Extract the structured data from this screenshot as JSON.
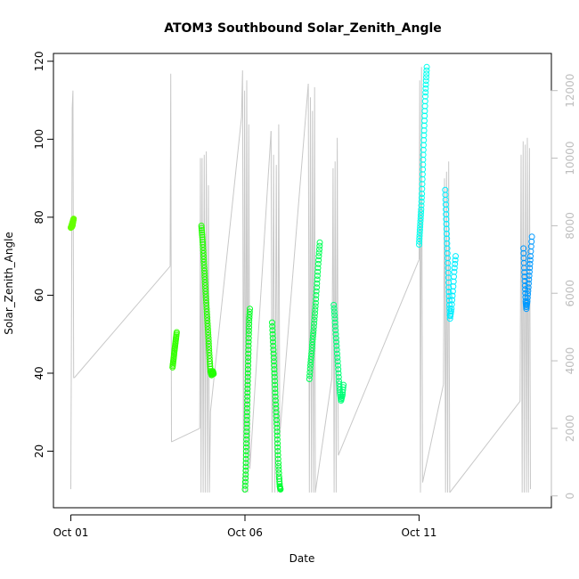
{
  "chart_data": {
    "type": "scatter",
    "title": "ATOM3 Southbound Solar_Zenith_Angle",
    "xlabel": "Date",
    "ylabel": "Solar_Zenith_Angle",
    "x_ticks": [
      {
        "label": "Oct 01",
        "day": 1.0
      },
      {
        "label": "Oct 06",
        "day": 6.0
      },
      {
        "label": "Oct 11",
        "day": 11.0
      }
    ],
    "xlim_days": [
      0.5,
      14.8
    ],
    "ylim": [
      5.5,
      122
    ],
    "y_ticks": [
      20,
      40,
      60,
      80,
      100,
      120
    ],
    "y2_ticks": [
      0,
      2000,
      4000,
      6000,
      8000,
      10000,
      12000
    ],
    "y2lim": [
      -350,
      13100
    ],
    "grid": false,
    "colors": {
      "altitude_line": "#c8c8c8",
      "right_axis": "#bdbdbd"
    },
    "series": [
      {
        "color": "#66ff00",
        "points": [
          [
            1.0,
            77.3
          ],
          [
            1.02,
            77.8
          ],
          [
            1.04,
            78.4
          ],
          [
            1.06,
            79.0
          ],
          [
            1.08,
            79.6
          ],
          [
            1.05,
            78.0
          ],
          [
            1.03,
            77.5
          ]
        ]
      },
      {
        "color": "#33ff00",
        "points": [
          [
            3.92,
            41.5
          ],
          [
            3.94,
            43.0
          ],
          [
            3.96,
            44.5
          ],
          [
            3.98,
            46.0
          ],
          [
            4.0,
            47.5
          ],
          [
            4.02,
            49.0
          ],
          [
            4.04,
            50.5
          ]
        ]
      },
      {
        "color": "#22ff00",
        "points": [
          [
            4.75,
            77.8
          ],
          [
            4.77,
            75.5
          ],
          [
            4.79,
            73.0
          ],
          [
            4.81,
            70.0
          ],
          [
            4.83,
            67.0
          ],
          [
            4.85,
            64.0
          ],
          [
            4.87,
            61.0
          ],
          [
            4.89,
            58.0
          ],
          [
            4.91,
            55.0
          ],
          [
            4.93,
            52.0
          ],
          [
            4.95,
            49.0
          ],
          [
            4.97,
            46.0
          ],
          [
            4.99,
            43.0
          ],
          [
            5.01,
            40.5
          ],
          [
            5.04,
            39.5
          ],
          [
            5.08,
            40.5
          ],
          [
            5.1,
            39.8
          ]
        ]
      },
      {
        "color": "#00ff22",
        "points": [
          [
            6.0,
            10.2
          ],
          [
            6.02,
            14.0
          ],
          [
            6.03,
            18.0
          ],
          [
            6.04,
            22.0
          ],
          [
            6.05,
            26.0
          ],
          [
            6.06,
            30.0
          ],
          [
            6.07,
            34.0
          ],
          [
            6.08,
            38.0
          ],
          [
            6.09,
            42.0
          ],
          [
            6.1,
            46.0
          ],
          [
            6.11,
            50.0
          ],
          [
            6.12,
            53.5
          ],
          [
            6.14,
            56.5
          ]
        ]
      },
      {
        "color": "#00ff33",
        "points": [
          [
            6.78,
            53.0
          ],
          [
            6.8,
            49.0
          ],
          [
            6.82,
            45.0
          ],
          [
            6.84,
            41.0
          ],
          [
            6.86,
            37.0
          ],
          [
            6.88,
            33.0
          ],
          [
            6.9,
            29.0
          ],
          [
            6.92,
            25.0
          ],
          [
            6.94,
            21.0
          ],
          [
            6.96,
            17.0
          ],
          [
            6.98,
            13.5
          ],
          [
            7.0,
            11.0
          ],
          [
            7.02,
            10.2
          ]
        ]
      },
      {
        "color": "#00ff55",
        "points": [
          [
            7.85,
            38.5
          ],
          [
            7.88,
            42.0
          ],
          [
            7.91,
            45.0
          ],
          [
            7.94,
            48.0
          ],
          [
            7.97,
            51.0
          ],
          [
            8.0,
            54.5
          ],
          [
            8.03,
            58.0
          ],
          [
            8.06,
            62.0
          ],
          [
            8.09,
            66.0
          ],
          [
            8.12,
            70.0
          ],
          [
            8.15,
            73.5
          ]
        ]
      },
      {
        "color": "#00ff77",
        "points": [
          [
            8.55,
            57.5
          ],
          [
            8.58,
            54.0
          ],
          [
            8.61,
            50.0
          ],
          [
            8.64,
            46.0
          ],
          [
            8.67,
            42.0
          ],
          [
            8.7,
            38.0
          ],
          [
            8.73,
            35.0
          ],
          [
            8.76,
            33.0
          ],
          [
            8.8,
            34.5
          ],
          [
            8.83,
            37.0
          ]
        ]
      },
      {
        "color": "#00ffee",
        "points": [
          [
            11.0,
            73.0
          ],
          [
            11.02,
            76.0
          ],
          [
            11.04,
            79.0
          ],
          [
            11.06,
            82.0
          ],
          [
            11.08,
            86.0
          ],
          [
            11.1,
            91.0
          ],
          [
            11.12,
            96.0
          ],
          [
            11.14,
            101.0
          ],
          [
            11.16,
            106.0
          ],
          [
            11.18,
            111.0
          ],
          [
            11.2,
            115.0
          ],
          [
            11.22,
            118.5
          ]
        ]
      },
      {
        "color": "#00eeff",
        "points": [
          [
            11.75,
            87.0
          ],
          [
            11.77,
            82.0
          ],
          [
            11.79,
            77.0
          ],
          [
            11.81,
            72.0
          ],
          [
            11.83,
            67.0
          ],
          [
            11.85,
            62.0
          ],
          [
            11.87,
            57.5
          ],
          [
            11.89,
            54.0
          ],
          [
            11.93,
            56.5
          ],
          [
            11.97,
            61.0
          ],
          [
            12.01,
            66.0
          ],
          [
            12.05,
            70.0
          ]
        ]
      },
      {
        "color": "#0099ff",
        "points": [
          [
            14.0,
            72.0
          ],
          [
            14.02,
            67.0
          ],
          [
            14.04,
            62.5
          ],
          [
            14.06,
            58.5
          ],
          [
            14.08,
            56.5
          ],
          [
            14.11,
            58.5
          ],
          [
            14.14,
            62.0
          ],
          [
            14.17,
            66.0
          ],
          [
            14.2,
            70.0
          ],
          [
            14.24,
            75.0
          ]
        ]
      }
    ],
    "altitude_segments": [
      [
        [
          1.0,
          200
        ],
        [
          1.02,
          5500
        ],
        [
          1.04,
          11500
        ],
        [
          1.06,
          12000
        ],
        [
          1.08,
          3500
        ],
        [
          1.1,
          3500
        ]
      ],
      [
        [
          1.1,
          3500
        ],
        [
          3.85,
          6800
        ]
      ],
      [
        [
          3.85,
          6800
        ],
        [
          3.87,
          12500
        ],
        [
          3.89,
          1600
        ]
      ],
      [
        [
          3.89,
          1600
        ],
        [
          4.7,
          2000
        ]
      ],
      [
        [
          4.7,
          2000
        ],
        [
          4.72,
          10000
        ],
        [
          4.74,
          100
        ],
        [
          4.77,
          10000
        ],
        [
          4.8,
          100
        ],
        [
          4.83,
          10100
        ],
        [
          4.86,
          100
        ],
        [
          4.89,
          10200
        ],
        [
          4.92,
          100
        ],
        [
          4.95,
          9200
        ],
        [
          4.98,
          100
        ],
        [
          5.01,
          2500
        ]
      ],
      [
        [
          5.01,
          2500
        ],
        [
          5.9,
          11200
        ]
      ],
      [
        [
          5.9,
          11200
        ],
        [
          5.93,
          12600
        ],
        [
          5.96,
          100
        ],
        [
          5.99,
          12000
        ],
        [
          6.02,
          100
        ],
        [
          6.05,
          12300
        ],
        [
          6.08,
          100
        ],
        [
          6.11,
          11000
        ],
        [
          6.14,
          800
        ]
      ],
      [
        [
          6.14,
          800
        ],
        [
          6.75,
          10800
        ]
      ],
      [
        [
          6.75,
          10800
        ],
        [
          6.78,
          100
        ],
        [
          6.82,
          10100
        ],
        [
          6.86,
          100
        ],
        [
          6.9,
          9800
        ],
        [
          6.94,
          100
        ],
        [
          6.97,
          11000
        ],
        [
          7.0,
          1800
        ]
      ],
      [
        [
          7.0,
          1800
        ],
        [
          7.82,
          12200
        ]
      ],
      [
        [
          7.82,
          12200
        ],
        [
          7.85,
          100
        ],
        [
          7.88,
          11800
        ],
        [
          7.91,
          100
        ],
        [
          7.94,
          11400
        ],
        [
          7.97,
          100
        ],
        [
          8.0,
          12100
        ],
        [
          8.02,
          100
        ]
      ],
      [
        [
          8.02,
          100
        ],
        [
          8.5,
          3500
        ]
      ],
      [
        [
          8.5,
          3500
        ],
        [
          8.53,
          9700
        ],
        [
          8.56,
          100
        ],
        [
          8.59,
          9900
        ],
        [
          8.62,
          100
        ],
        [
          8.65,
          10600
        ],
        [
          8.68,
          1200
        ]
      ],
      [
        [
          8.68,
          1200
        ],
        [
          11.0,
          7000
        ]
      ],
      [
        [
          11.0,
          7000
        ],
        [
          11.02,
          12300
        ],
        [
          11.04,
          100
        ],
        [
          11.07,
          12700
        ],
        [
          11.1,
          400
        ]
      ],
      [
        [
          11.1,
          400
        ],
        [
          11.7,
          3300
        ]
      ],
      [
        [
          11.7,
          3300
        ],
        [
          11.73,
          9400
        ],
        [
          11.76,
          100
        ],
        [
          11.79,
          9600
        ],
        [
          11.82,
          100
        ],
        [
          11.85,
          9900
        ],
        [
          11.88,
          100
        ]
      ],
      [
        [
          11.88,
          100
        ],
        [
          13.9,
          2800
        ]
      ],
      [
        [
          13.9,
          2800
        ],
        [
          13.93,
          10100
        ],
        [
          13.96,
          100
        ],
        [
          13.99,
          10500
        ],
        [
          14.02,
          100
        ],
        [
          14.05,
          10400
        ],
        [
          14.08,
          100
        ],
        [
          14.11,
          10600
        ],
        [
          14.14,
          100
        ],
        [
          14.17,
          10300
        ],
        [
          14.2,
          200
        ]
      ]
    ]
  }
}
